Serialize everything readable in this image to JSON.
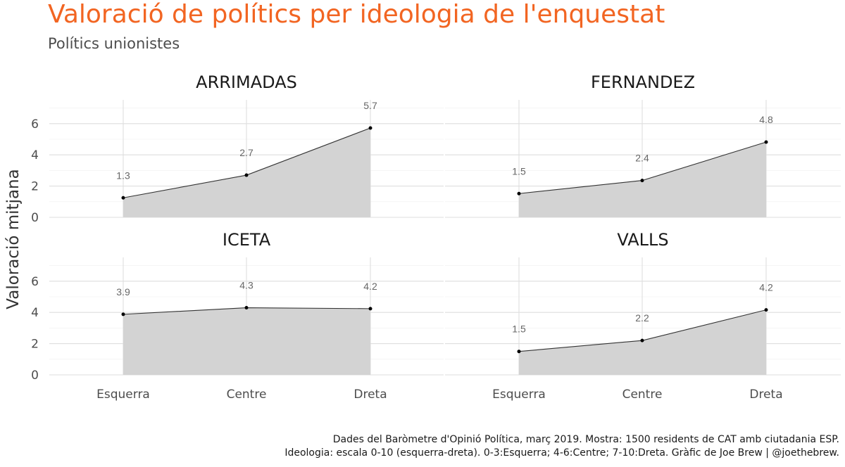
{
  "chart_data": {
    "type": "area",
    "title": "Valoració de polítics per ideologia de l'enquestat",
    "subtitle": "Polítics unionistes",
    "ylabel": "Valoració mitjana",
    "xlabel": "",
    "categories": [
      "Esquerra",
      "Centre",
      "Dreta"
    ],
    "ylim": [
      0,
      7.5
    ],
    "yticks": [
      0,
      2,
      4,
      6
    ],
    "grid": true,
    "panels": [
      {
        "name": "ARRIMADAS",
        "values": [
          1.25,
          2.7,
          5.72
        ],
        "labels": [
          "1.3",
          "2.7",
          "5.7"
        ]
      },
      {
        "name": "FERNANDEZ",
        "values": [
          1.52,
          2.36,
          4.82
        ],
        "labels": [
          "1.5",
          "2.4",
          "4.8"
        ]
      },
      {
        "name": "ICETA",
        "values": [
          3.88,
          4.3,
          4.24
        ],
        "labels": [
          "3.9",
          "4.3",
          "4.2"
        ]
      },
      {
        "name": "VALLS",
        "values": [
          1.5,
          2.2,
          4.16
        ],
        "labels": [
          "1.5",
          "2.2",
          "4.2"
        ]
      }
    ],
    "caption": [
      "Dades del Baròmetre d'Opinió Política, març 2019. Mostra: 1500 residents de CAT amb ciutadania ESP.",
      "Ideologia: escala 0-10 (esquerra-dreta). 0-3:Esquerra; 4-6:Centre; 7-10:Dreta. Gràfic de Joe Brew | @joethebrew."
    ],
    "colors": {
      "title": "#f26522",
      "area": "#d3d3d3",
      "line": "#333333",
      "point": "#000000"
    }
  }
}
